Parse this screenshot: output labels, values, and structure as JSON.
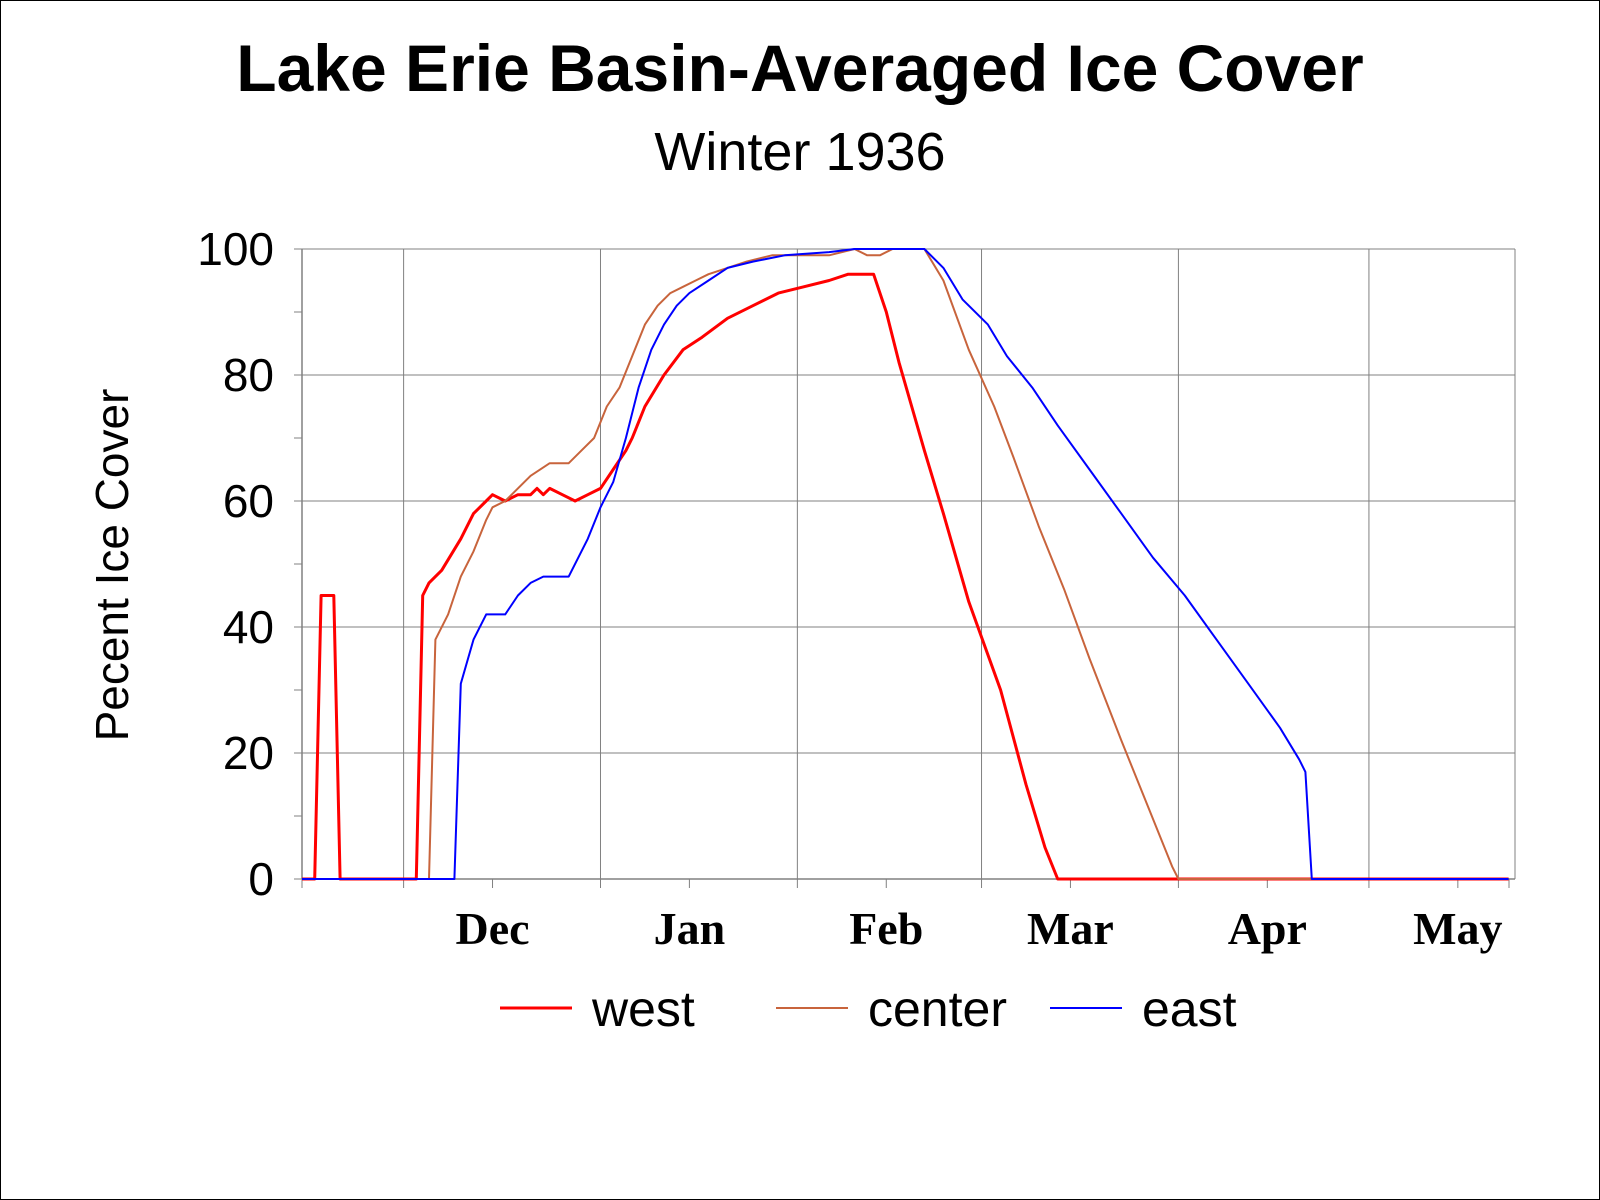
{
  "title": "Lake Erie Basin-Averaged Ice Cover",
  "subtitle": "Winter 1936",
  "chart_data": {
    "type": "line",
    "title": "Lake Erie Basin-Averaged Ice Cover",
    "subtitle": "Winter 1936",
    "xlabel": "",
    "ylabel": "Pecent Ice Cover",
    "ylim": [
      0,
      100
    ],
    "yticks": [
      0,
      20,
      40,
      60,
      80,
      100
    ],
    "xlim": [
      "Nov 15",
      "May 24"
    ],
    "month_labels": [
      {
        "label": "Dec",
        "date": "Dec 15"
      },
      {
        "label": "Jan",
        "date": "Jan 15"
      },
      {
        "label": "Feb",
        "date": "Feb 15"
      },
      {
        "label": "Mar",
        "date": "Mar 15"
      },
      {
        "label": "Apr",
        "date": "Apr 15"
      },
      {
        "label": "May",
        "date": "May 15"
      }
    ],
    "grid": true,
    "legend_position": "bottom",
    "series": [
      {
        "name": "west",
        "color": "#ff0000",
        "points": [
          [
            "Nov 15",
            0
          ],
          [
            "Nov 17",
            0
          ],
          [
            "Nov 18",
            45
          ],
          [
            "Nov 19",
            45
          ],
          [
            "Nov 20",
            45
          ],
          [
            "Nov 21",
            0
          ],
          [
            "Dec 3",
            0
          ],
          [
            "Dec 4",
            45
          ],
          [
            "Dec 5",
            47
          ],
          [
            "Dec 7",
            49
          ],
          [
            "Dec 10",
            54
          ],
          [
            "Dec 12",
            58
          ],
          [
            "Dec 14",
            60
          ],
          [
            "Dec 15",
            61
          ],
          [
            "Dec 17",
            60
          ],
          [
            "Dec 19",
            61
          ],
          [
            "Dec 21",
            61
          ],
          [
            "Dec 22",
            62
          ],
          [
            "Dec 23",
            61
          ],
          [
            "Dec 24",
            62
          ],
          [
            "Dec 26",
            61
          ],
          [
            "Dec 28",
            60
          ],
          [
            "Dec 30",
            61
          ],
          [
            "Jan 1",
            62
          ],
          [
            "Jan 3",
            65
          ],
          [
            "Jan 5",
            68
          ],
          [
            "Jan 6",
            70
          ],
          [
            "Jan 8",
            75
          ],
          [
            "Jan 11",
            80
          ],
          [
            "Jan 14",
            84
          ],
          [
            "Jan 17",
            86
          ],
          [
            "Jan 21",
            89
          ],
          [
            "Jan 25",
            91
          ],
          [
            "Jan 29",
            93
          ],
          [
            "Feb 2",
            94
          ],
          [
            "Feb 6",
            95
          ],
          [
            "Feb 9",
            96
          ],
          [
            "Feb 13",
            96
          ],
          [
            "Feb 15",
            90
          ],
          [
            "Feb 17",
            82
          ],
          [
            "Feb 19",
            75
          ],
          [
            "Feb 21",
            68
          ],
          [
            "Feb 24",
            58
          ],
          [
            "Feb 28",
            44
          ],
          [
            "Mar 4",
            30
          ],
          [
            "Mar 8",
            15
          ],
          [
            "Mar 11",
            5
          ],
          [
            "Mar 13",
            0
          ],
          [
            "May 23",
            0
          ]
        ]
      },
      {
        "name": "center",
        "color": "#c8643c",
        "points": [
          [
            "Nov 15",
            0
          ],
          [
            "Dec 5",
            0
          ],
          [
            "Dec 6",
            38
          ],
          [
            "Dec 8",
            42
          ],
          [
            "Dec 10",
            48
          ],
          [
            "Dec 12",
            52
          ],
          [
            "Dec 14",
            57
          ],
          [
            "Dec 15",
            59
          ],
          [
            "Dec 17",
            60
          ],
          [
            "Dec 19",
            62
          ],
          [
            "Dec 21",
            64
          ],
          [
            "Dec 24",
            66
          ],
          [
            "Dec 27",
            66
          ],
          [
            "Dec 29",
            68
          ],
          [
            "Dec 31",
            70
          ],
          [
            "Jan 2",
            75
          ],
          [
            "Jan 4",
            78
          ],
          [
            "Jan 6",
            83
          ],
          [
            "Jan 8",
            88
          ],
          [
            "Jan 10",
            91
          ],
          [
            "Jan 12",
            93
          ],
          [
            "Jan 14",
            94
          ],
          [
            "Jan 16",
            95
          ],
          [
            "Jan 18",
            96
          ],
          [
            "Jan 21",
            97
          ],
          [
            "Jan 24",
            98
          ],
          [
            "Jan 28",
            99
          ],
          [
            "Feb 2",
            99
          ],
          [
            "Feb 6",
            99
          ],
          [
            "Feb 10",
            100
          ],
          [
            "Feb 12",
            99
          ],
          [
            "Feb 14",
            99
          ],
          [
            "Feb 16",
            100
          ],
          [
            "Feb 21",
            100
          ],
          [
            "Feb 24",
            95
          ],
          [
            "Feb 28",
            84
          ],
          [
            "Mar 3",
            75
          ],
          [
            "Mar 6",
            67
          ],
          [
            "Mar 10",
            56
          ],
          [
            "Mar 14",
            46
          ],
          [
            "Mar 18",
            35
          ],
          [
            "Mar 23",
            22
          ],
          [
            "Mar 27",
            12
          ],
          [
            "Mar 31",
            2
          ],
          [
            "Apr 1",
            0
          ],
          [
            "May 23",
            0
          ]
        ]
      },
      {
        "name": "east",
        "color": "#0000ff",
        "points": [
          [
            "Nov 15",
            0
          ],
          [
            "Dec 9",
            0
          ],
          [
            "Dec 10",
            31
          ],
          [
            "Dec 12",
            38
          ],
          [
            "Dec 14",
            42
          ],
          [
            "Dec 17",
            42
          ],
          [
            "Dec 19",
            45
          ],
          [
            "Dec 21",
            47
          ],
          [
            "Dec 23",
            48
          ],
          [
            "Dec 27",
            48
          ],
          [
            "Dec 30",
            54
          ],
          [
            "Jan 1",
            59
          ],
          [
            "Jan 3",
            63
          ],
          [
            "Jan 5",
            70
          ],
          [
            "Jan 7",
            78
          ],
          [
            "Jan 9",
            84
          ],
          [
            "Jan 11",
            88
          ],
          [
            "Jan 13",
            91
          ],
          [
            "Jan 15",
            93
          ],
          [
            "Jan 18",
            95
          ],
          [
            "Jan 21",
            97
          ],
          [
            "Jan 25",
            98
          ],
          [
            "Jan 30",
            99
          ],
          [
            "Feb 6",
            99.5
          ],
          [
            "Feb 10",
            100
          ],
          [
            "Feb 21",
            100
          ],
          [
            "Feb 24",
            97
          ],
          [
            "Feb 27",
            92
          ],
          [
            "Mar 2",
            88
          ],
          [
            "Mar 5",
            83
          ],
          [
            "Mar 9",
            78
          ],
          [
            "Mar 13",
            72
          ],
          [
            "Mar 18",
            65
          ],
          [
            "Mar 23",
            58
          ],
          [
            "Mar 28",
            51
          ],
          [
            "Apr 2",
            45
          ],
          [
            "Apr 7",
            38
          ],
          [
            "Apr 12",
            31
          ],
          [
            "Apr 17",
            24
          ],
          [
            "Apr 20",
            19
          ],
          [
            "Apr 21",
            17
          ],
          [
            "Apr 22",
            0
          ],
          [
            "May 23",
            0
          ]
        ]
      }
    ]
  }
}
